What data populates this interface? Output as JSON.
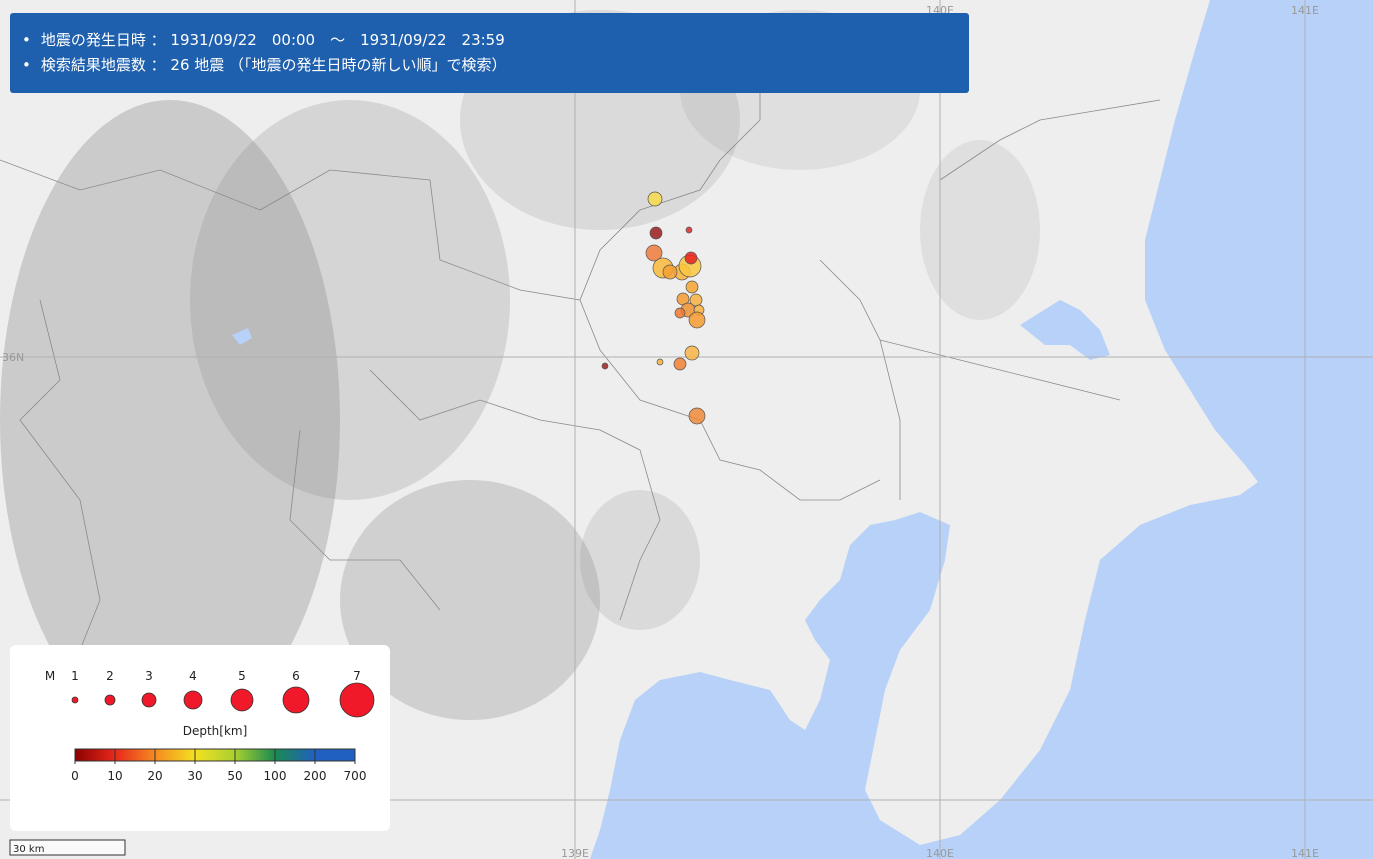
{
  "header": {
    "line1": "地震の発生日時 ： 1931/09/22　00:00　～　1931/09/22　23:59",
    "line2": "検索結果地震数 ： 26 地震 （「地震の発生日時の新しい順」で検索）"
  },
  "graticule": {
    "longitudes": [
      "139E",
      "140E",
      "141E"
    ],
    "latitudes": [
      "36N"
    ]
  },
  "legend": {
    "magnitude_label": "M",
    "magnitudes": [
      1,
      2,
      3,
      4,
      5,
      6,
      7
    ],
    "depth_label": "Depth[km]",
    "depths": [
      0,
      10,
      20,
      30,
      50,
      100,
      200,
      700
    ]
  },
  "scale": "30 km"
}
